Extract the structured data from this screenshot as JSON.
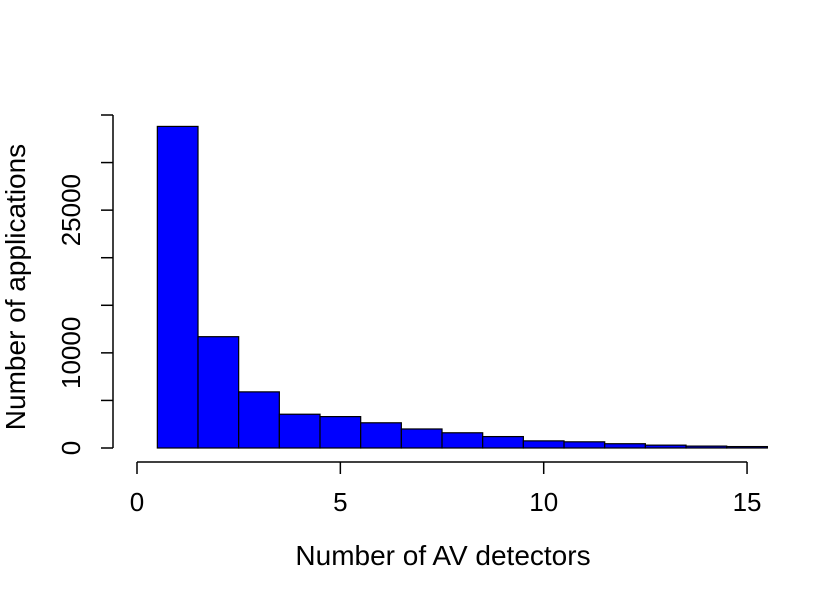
{
  "chart_data": {
    "type": "bar",
    "title": "",
    "xlabel": "Number of AV detectors",
    "ylabel": "Number of applications",
    "bin_edges": [
      0.5,
      1.5,
      2.5,
      3.5,
      4.5,
      5.5,
      6.5,
      7.5,
      8.5,
      9.5,
      10.5,
      11.5,
      12.5,
      13.5,
      14.5,
      15.5
    ],
    "values": [
      33800,
      11700,
      5900,
      3550,
      3300,
      2650,
      2000,
      1600,
      1200,
      750,
      650,
      450,
      300,
      200,
      150
    ],
    "xlim": [
      0,
      15.5
    ],
    "ylim": [
      0,
      35000
    ],
    "xticks": [
      0,
      5,
      10,
      15
    ],
    "xtick_labels": [
      "0",
      "5",
      "10",
      "15"
    ],
    "yticks": [
      0,
      5000,
      10000,
      15000,
      20000,
      25000,
      30000,
      35000
    ],
    "ytick_labels": [
      "0",
      "10000",
      "25000"
    ],
    "ytick_label_values": [
      0,
      10000,
      25000
    ],
    "grid": false,
    "legend": "none",
    "colors": {
      "bar_fill": "#0000ff",
      "bar_stroke": "#000000",
      "axis": "#000000"
    }
  }
}
